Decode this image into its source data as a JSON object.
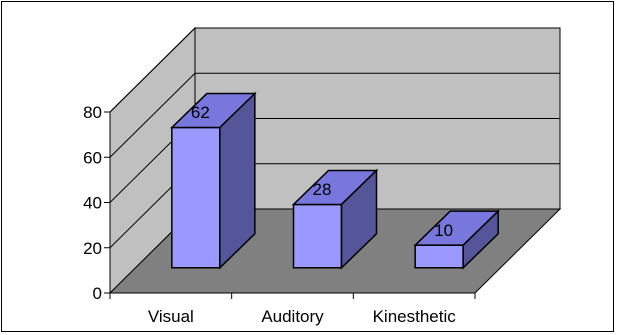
{
  "chart_data": {
    "type": "bar",
    "style": "3d-column",
    "categories": [
      "Visual",
      "Auditory",
      "Kinesthetic"
    ],
    "values": [
      62,
      28,
      10
    ],
    "data_labels": [
      "62",
      "28",
      "10"
    ],
    "title": "",
    "xlabel": "",
    "ylabel": "",
    "ylim": [
      0,
      80
    ],
    "yticks": [
      "0",
      "20",
      "40",
      "60",
      "80"
    ],
    "grid": true,
    "legend": "none",
    "colors": {
      "bar_front": "#9999ff",
      "bar_top": "#7777dd",
      "bar_side": "#555599",
      "floor": "#808080",
      "back_wall": "#c0c0c0",
      "side_wall": "#c0c0c0",
      "gridline": "#000000"
    }
  }
}
